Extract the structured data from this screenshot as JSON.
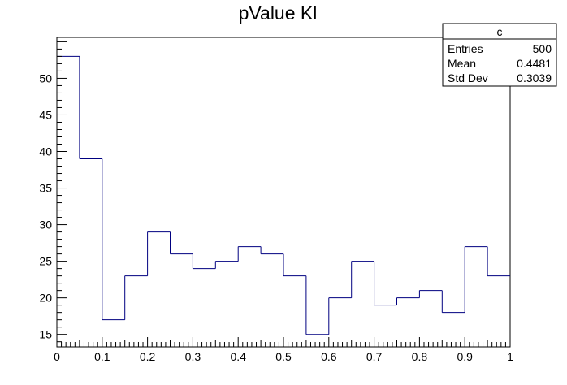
{
  "chart_data": {
    "type": "histogram",
    "title": "pValue Kl",
    "xlabel": "",
    "ylabel": "",
    "xlim": [
      0,
      1
    ],
    "ylim": [
      13.3,
      55.6
    ],
    "bin_width": 0.05,
    "bin_edges": [
      0,
      0.05,
      0.1,
      0.15,
      0.2,
      0.25,
      0.3,
      0.35,
      0.4,
      0.45,
      0.5,
      0.55,
      0.6,
      0.65,
      0.7,
      0.75,
      0.8,
      0.85,
      0.9,
      0.95,
      1.0
    ],
    "values": [
      53,
      39,
      17,
      23,
      29,
      26,
      24,
      25,
      27,
      26,
      23,
      15,
      20,
      25,
      19,
      20,
      21,
      18,
      27,
      23
    ],
    "x_tick_labels": [
      "0",
      "0.1",
      "0.2",
      "0.3",
      "0.4",
      "0.5",
      "0.6",
      "0.7",
      "0.8",
      "0.9",
      "1"
    ],
    "x_tick_values": [
      0,
      0.1,
      0.2,
      0.3,
      0.4,
      0.5,
      0.6,
      0.7,
      0.8,
      0.9,
      1.0
    ],
    "y_tick_labels": [
      "15",
      "20",
      "25",
      "30",
      "35",
      "40",
      "45",
      "50"
    ],
    "y_tick_values": [
      15,
      20,
      25,
      30,
      35,
      40,
      45,
      50
    ],
    "line_color": "#000080",
    "stats_box": {
      "name": "c",
      "rows": [
        {
          "label": "Entries",
          "value": "500"
        },
        {
          "label": "Mean",
          "value": "0.4481"
        },
        {
          "label": "Std Dev",
          "value": "0.3039"
        }
      ]
    }
  }
}
